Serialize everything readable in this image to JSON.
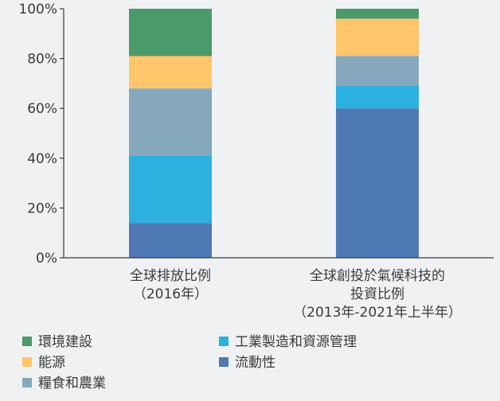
{
  "chart_data": {
    "type": "bar",
    "stacked": true,
    "categories": [
      [
        "全球排放比例",
        "（2016年）"
      ],
      [
        "全球創投於氣候科技的",
        "投資比例",
        "（2013年-2021年上半年）"
      ]
    ],
    "series": [
      {
        "name": "流動性",
        "color": "#4e79b4",
        "values": [
          14,
          60
        ]
      },
      {
        "name": "工業製造和資源管理",
        "color": "#2bb0e0",
        "values": [
          27,
          9
        ]
      },
      {
        "name": "糧食和農業",
        "color": "#86a8bd",
        "values": [
          27,
          12
        ]
      },
      {
        "name": "能源",
        "color": "#fec56b",
        "values": [
          13,
          15
        ]
      },
      {
        "name": "環境建設",
        "color": "#4a9a6a",
        "values": [
          19,
          4
        ]
      }
    ],
    "y_ticks": [
      "0%",
      "20%",
      "40%",
      "60%",
      "80%",
      "100%"
    ],
    "ylim": [
      0,
      100
    ],
    "grid": false,
    "legend": {
      "placement": "bottom",
      "order": [
        "環境建設",
        "工業製造和資源管理",
        "能源",
        "流動性",
        "糧食和農業"
      ]
    }
  }
}
